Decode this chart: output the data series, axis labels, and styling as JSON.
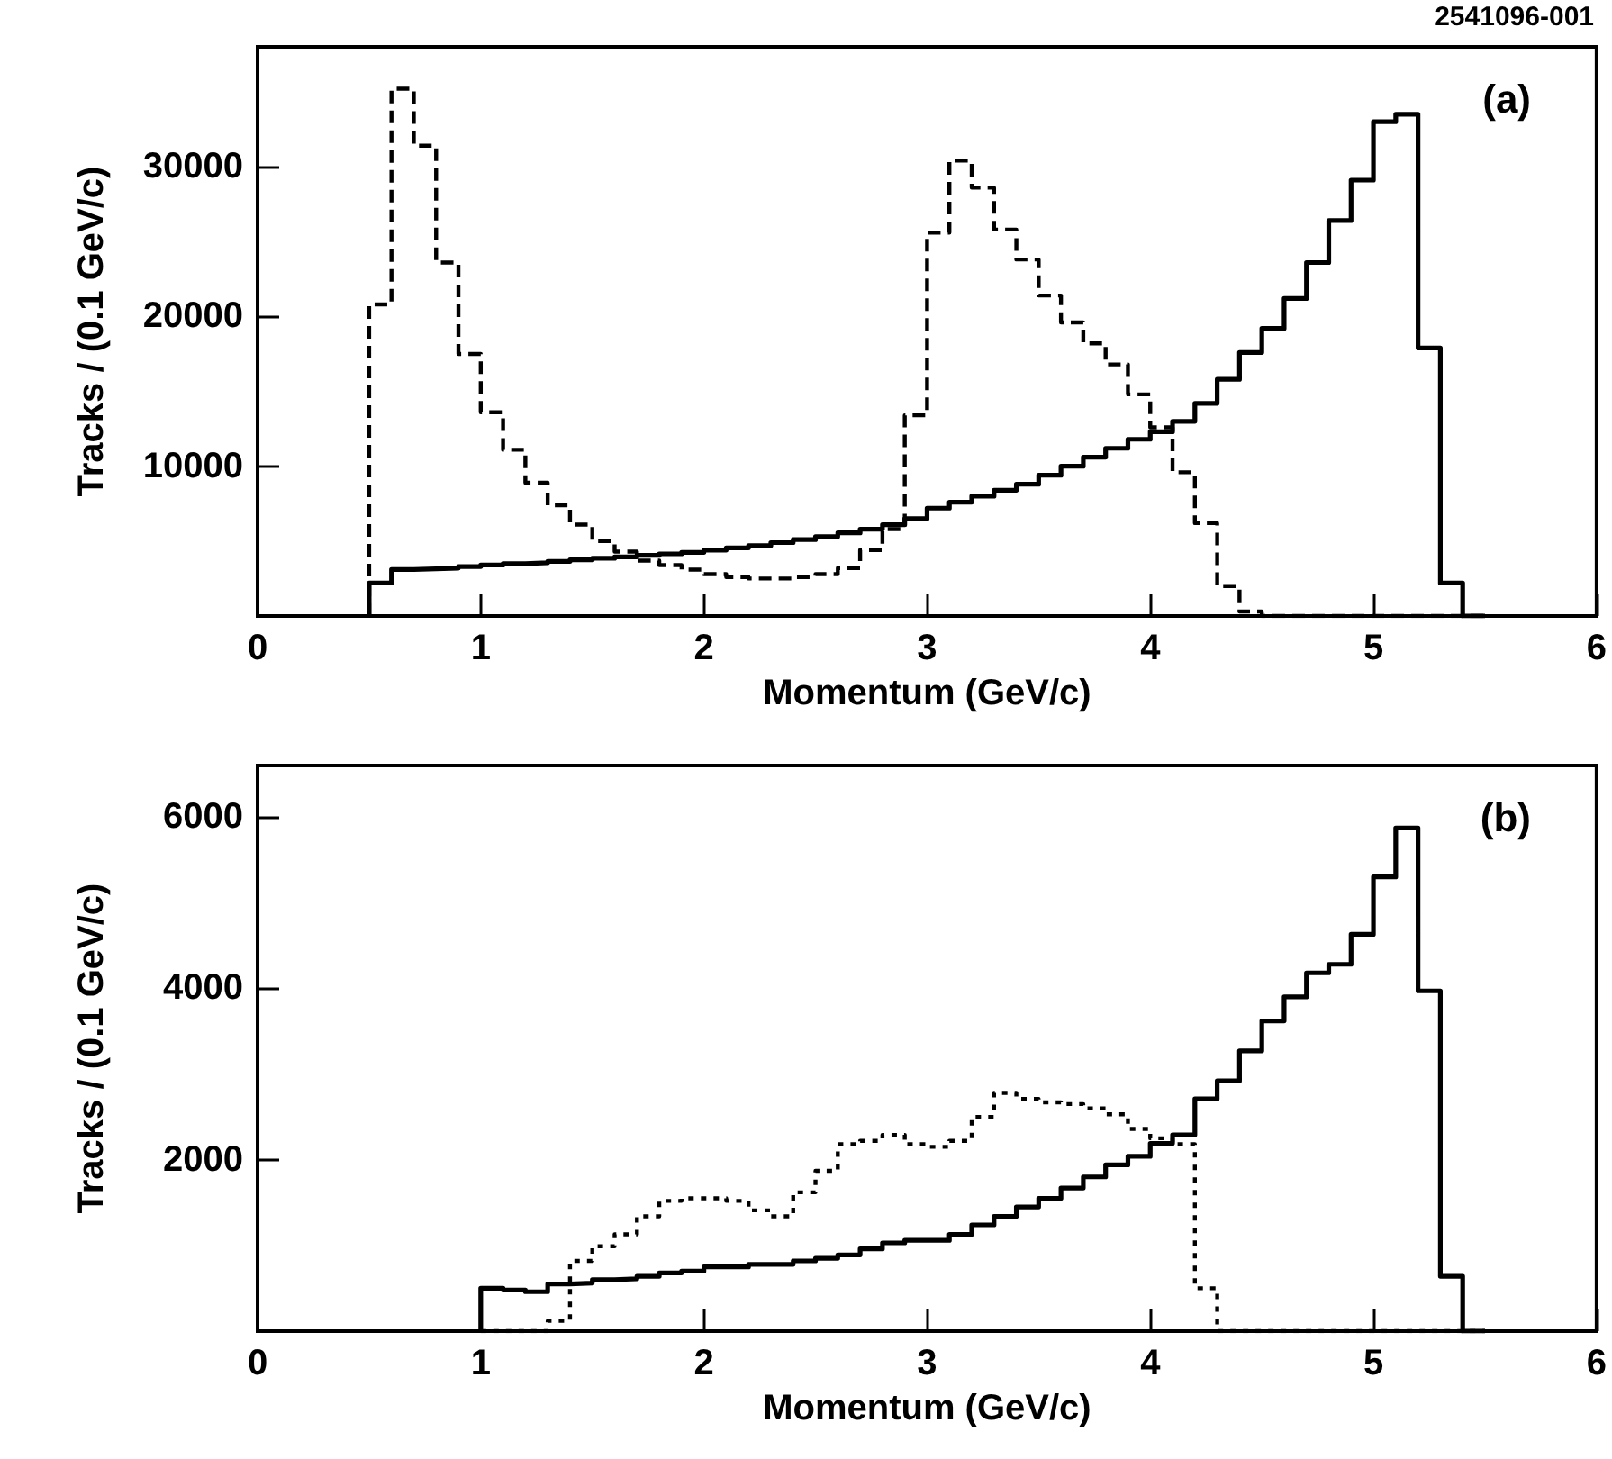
{
  "chart_data": [
    {
      "type": "histogram",
      "xlabel": "Momentum (GeV/c)",
      "ylabel": "Tracks / (0.1 GeV/c)",
      "annotations": [
        "2541096-001",
        "(a)"
      ],
      "xlim": [
        0,
        6
      ],
      "xticks": [
        0,
        1,
        2,
        3,
        4,
        5,
        6
      ],
      "ylim": [
        0,
        38000
      ],
      "yticks": [
        10000,
        20000,
        30000
      ],
      "bins": [
        0.5,
        0.6,
        0.7,
        0.8,
        0.9,
        1.0,
        1.1,
        1.2,
        1.3,
        1.4,
        1.5,
        1.6,
        1.7,
        1.8,
        1.9,
        2.0,
        2.1,
        2.2,
        2.3,
        2.4,
        2.5,
        2.6,
        2.7,
        2.8,
        2.9,
        3.0,
        3.1,
        3.2,
        3.3,
        3.4,
        3.5,
        3.6,
        3.7,
        3.8,
        3.9,
        4.0,
        4.1,
        4.2,
        4.3,
        4.4,
        4.5,
        4.6,
        4.7,
        4.8,
        4.9,
        5.0,
        5.1,
        5.2,
        5.3,
        5.4,
        5.5
      ],
      "series": [
        {
          "color": "#000000",
          "line_style": "solid",
          "values": [
            2200,
            3100,
            3150,
            3200,
            3300,
            3400,
            3500,
            3550,
            3650,
            3750,
            3850,
            3950,
            4050,
            4150,
            4250,
            4400,
            4550,
            4700,
            4900,
            5100,
            5300,
            5550,
            5800,
            6100,
            6500,
            7200,
            7600,
            8000,
            8400,
            8800,
            9400,
            10000,
            10600,
            11200,
            11800,
            12300,
            13000,
            14200,
            15800,
            17600,
            19200,
            21200,
            23600,
            26400,
            29100,
            33000,
            33500,
            17900,
            2200,
            0
          ]
        },
        {
          "color": "#000000",
          "line_style": "dashed",
          "values": [
            20800,
            35200,
            31400,
            23600,
            17500,
            13600,
            11100,
            8900,
            7400,
            6100,
            5000,
            4300,
            3700,
            3400,
            3100,
            2800,
            2600,
            2500,
            2500,
            2600,
            2800,
            3200,
            4400,
            5800,
            13400,
            25600,
            30400,
            28600,
            25800,
            23800,
            21400,
            19600,
            18200,
            16800,
            14800,
            12600,
            9600,
            6200,
            2000,
            300,
            0,
            0,
            0,
            0,
            0,
            0,
            0,
            0,
            0,
            0
          ]
        }
      ]
    },
    {
      "type": "histogram",
      "xlabel": "Momentum (GeV/c)",
      "ylabel": "Tracks / (0.1 GeV/c)",
      "annotations": [
        "(b)"
      ],
      "xlim": [
        0,
        6
      ],
      "xticks": [
        0,
        1,
        2,
        3,
        4,
        5,
        6
      ],
      "ylim": [
        0,
        6600
      ],
      "yticks": [
        2000,
        4000,
        6000
      ],
      "bins": [
        1.0,
        1.1,
        1.2,
        1.3,
        1.4,
        1.5,
        1.6,
        1.7,
        1.8,
        1.9,
        2.0,
        2.1,
        2.2,
        2.3,
        2.4,
        2.5,
        2.6,
        2.7,
        2.8,
        2.9,
        3.0,
        3.1,
        3.2,
        3.3,
        3.4,
        3.5,
        3.6,
        3.7,
        3.8,
        3.9,
        4.0,
        4.1,
        4.2,
        4.3,
        4.4,
        4.5,
        4.6,
        4.7,
        4.8,
        4.9,
        5.0,
        5.1,
        5.2,
        5.3,
        5.4,
        5.5
      ],
      "series": [
        {
          "color": "#000000",
          "line_style": "solid",
          "values": [
            500,
            480,
            460,
            550,
            560,
            600,
            610,
            640,
            680,
            700,
            750,
            750,
            780,
            780,
            820,
            850,
            890,
            960,
            1030,
            1060,
            1060,
            1130,
            1240,
            1340,
            1450,
            1550,
            1670,
            1800,
            1940,
            2040,
            2190,
            2290,
            2710,
            2920,
            3270,
            3620,
            3900,
            4180,
            4280,
            4630,
            5300,
            5870,
            3970,
            640,
            0
          ]
        },
        {
          "color": "#000000",
          "line_style": "dotted",
          "values": [
            0,
            0,
            0,
            120,
            820,
            990,
            1130,
            1340,
            1520,
            1550,
            1550,
            1520,
            1410,
            1340,
            1620,
            1870,
            2180,
            2220,
            2290,
            2180,
            2150,
            2220,
            2500,
            2780,
            2710,
            2670,
            2650,
            2600,
            2530,
            2360,
            2250,
            2180,
            500,
            0,
            0,
            0,
            0,
            0,
            0,
            0,
            0,
            0,
            0,
            0,
            0
          ]
        }
      ]
    }
  ]
}
